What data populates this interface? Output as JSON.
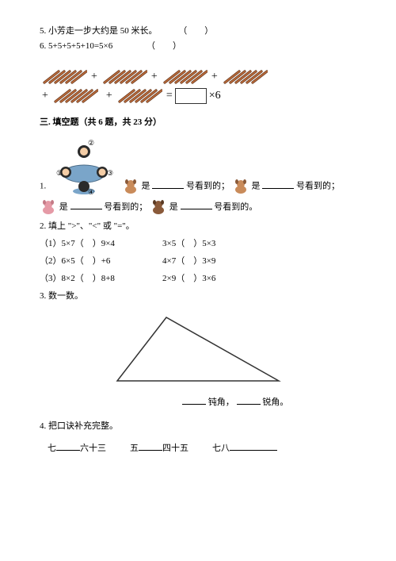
{
  "q5": {
    "text": "5. 小芳走一步大约是 50 米长。",
    "paren": "（　　）"
  },
  "q6": {
    "text": "6. 5+5+5+5+10=5×6",
    "paren": "（　　）"
  },
  "sticks": {
    "stick_color_fill": "#b8693a",
    "stick_color_stroke": "#5a2f16",
    "plus": "+",
    "eq": "=",
    "times6": "×6",
    "final_box_stroke": "#333333"
  },
  "section3": {
    "title": "三. 填空题（共 6 题，共 23 分）"
  },
  "q1_view": {
    "labels": {
      "n1": "①",
      "n2": "②",
      "n3": "③",
      "n4": "④"
    },
    "prefix": "1.",
    "text_is": "是",
    "text_seen": "号看到的；",
    "text_seen_end": "号看到的。",
    "table_color": "#7aa5c9",
    "head_colors": {
      "hair": "#2a2a2a",
      "skin": "#f4cda6"
    },
    "dog_colors": {
      "tan": "#c98b5a",
      "brown": "#8a5a3a",
      "pink": "#e59aa6"
    }
  },
  "q2_compare": {
    "prompt": "2. 填上 \">\"、\"<\" 或 \"=\"。",
    "rows": [
      {
        "n": "（1）",
        "a": "5×7（",
        "b": "）9×4",
        "c": "3×5（",
        "d": "）5×3"
      },
      {
        "n": "（2）",
        "a": "6×5（",
        "b": "）+6",
        "c": "4×7（",
        "d": "）3×9"
      },
      {
        "n": "（3）",
        "a": "8×2（",
        "b": "）8+8",
        "c": "2×9（",
        "d": "）3×6"
      }
    ]
  },
  "q3_count": {
    "prompt": "3. 数一数。",
    "triangle_stroke": "#333333",
    "label_obtuse": "钝角，",
    "label_acute": "锐角。"
  },
  "q4_rhyme": {
    "prompt": "4. 把口诀补充完整。",
    "items": [
      {
        "a": "七",
        "b": "六十三"
      },
      {
        "a": "五",
        "b": "四十五"
      },
      {
        "a": "七八"
      }
    ]
  }
}
